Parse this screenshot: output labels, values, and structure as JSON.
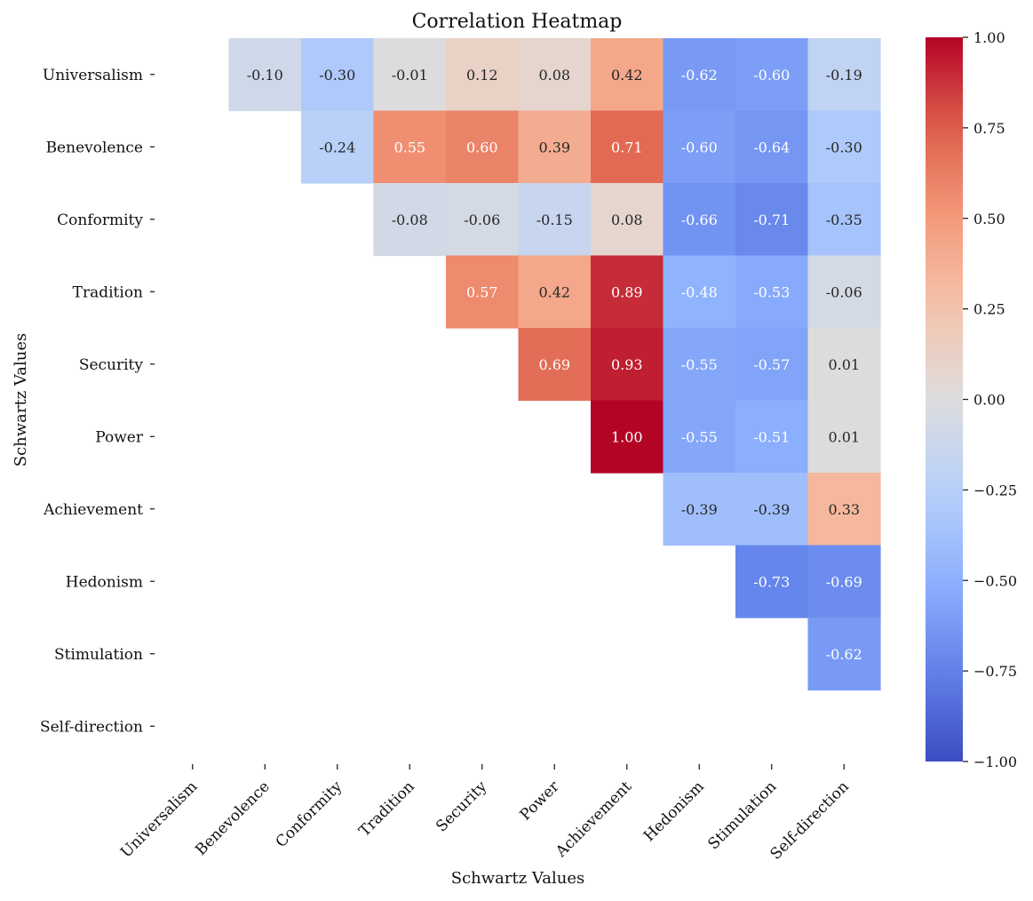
{
  "chart_data": {
    "type": "heatmap",
    "title": "Correlation Heatmap",
    "xlabel": "Schwartz Values",
    "ylabel": "Schwartz Values",
    "rows": [
      "Universalism",
      "Benevolence",
      "Conformity",
      "Tradition",
      "Security",
      "Power",
      "Achievement",
      "Hedonism",
      "Stimulation",
      "Self-direction"
    ],
    "columns": [
      "Universalism",
      "Benevolence",
      "Conformity",
      "Tradition",
      "Security",
      "Power",
      "Achievement",
      "Hedonism",
      "Stimulation",
      "Self-direction"
    ],
    "values": [
      [
        null,
        -0.1,
        -0.3,
        -0.01,
        0.12,
        0.08,
        0.42,
        -0.62,
        -0.6,
        -0.19
      ],
      [
        null,
        null,
        -0.24,
        0.55,
        0.6,
        0.39,
        0.71,
        -0.6,
        -0.64,
        -0.3
      ],
      [
        null,
        null,
        null,
        -0.08,
        -0.06,
        -0.15,
        0.08,
        -0.66,
        -0.71,
        -0.35
      ],
      [
        null,
        null,
        null,
        null,
        0.57,
        0.42,
        0.89,
        -0.48,
        -0.53,
        -0.06
      ],
      [
        null,
        null,
        null,
        null,
        null,
        0.69,
        0.93,
        -0.55,
        -0.57,
        0.01
      ],
      [
        null,
        null,
        null,
        null,
        null,
        null,
        1.0,
        -0.55,
        -0.51,
        0.01
      ],
      [
        null,
        null,
        null,
        null,
        null,
        null,
        null,
        -0.39,
        -0.39,
        0.33
      ],
      [
        null,
        null,
        null,
        null,
        null,
        null,
        null,
        null,
        -0.73,
        -0.69
      ],
      [
        null,
        null,
        null,
        null,
        null,
        null,
        null,
        null,
        null,
        -0.62
      ],
      [
        null,
        null,
        null,
        null,
        null,
        null,
        null,
        null,
        null,
        null
      ]
    ],
    "colormap": "coolwarm",
    "vmin": -1.0,
    "vmax": 1.0,
    "colorbar_ticks": [
      1.0,
      0.75,
      0.5,
      0.25,
      0.0,
      -0.25,
      -0.5,
      -0.75,
      -1.0
    ],
    "colorbar_tick_labels": [
      "1.00",
      "0.75",
      "0.50",
      "0.25",
      "0.00",
      "−0.25",
      "−0.50",
      "−0.75",
      "−1.00"
    ]
  }
}
